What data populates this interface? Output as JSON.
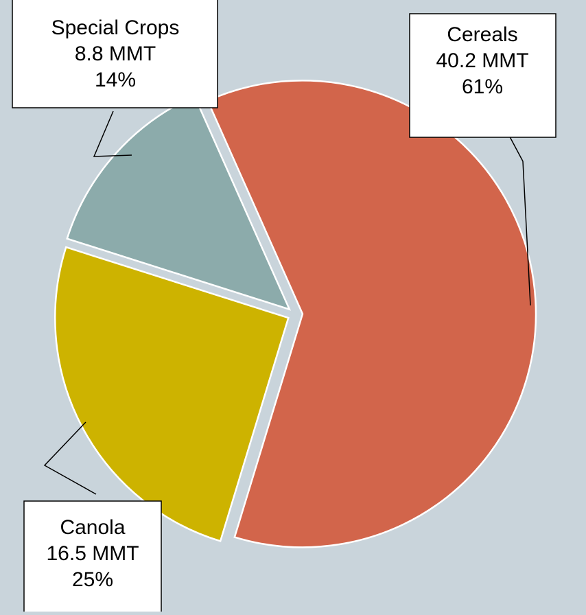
{
  "chart_data": {
    "type": "pie",
    "categories": [
      "Cereals",
      "Canola",
      "Special Crops"
    ],
    "values": [
      40.2,
      16.5,
      8.8
    ],
    "value_labels": [
      "40.2 MMT",
      "16.5 MMT",
      "8.8 MMT"
    ],
    "percents": [
      61,
      25,
      14
    ],
    "percent_labels": [
      "61%",
      "25%",
      "14%"
    ],
    "colors": [
      "#d2654b",
      "#cdb300",
      "#8cabab"
    ]
  }
}
